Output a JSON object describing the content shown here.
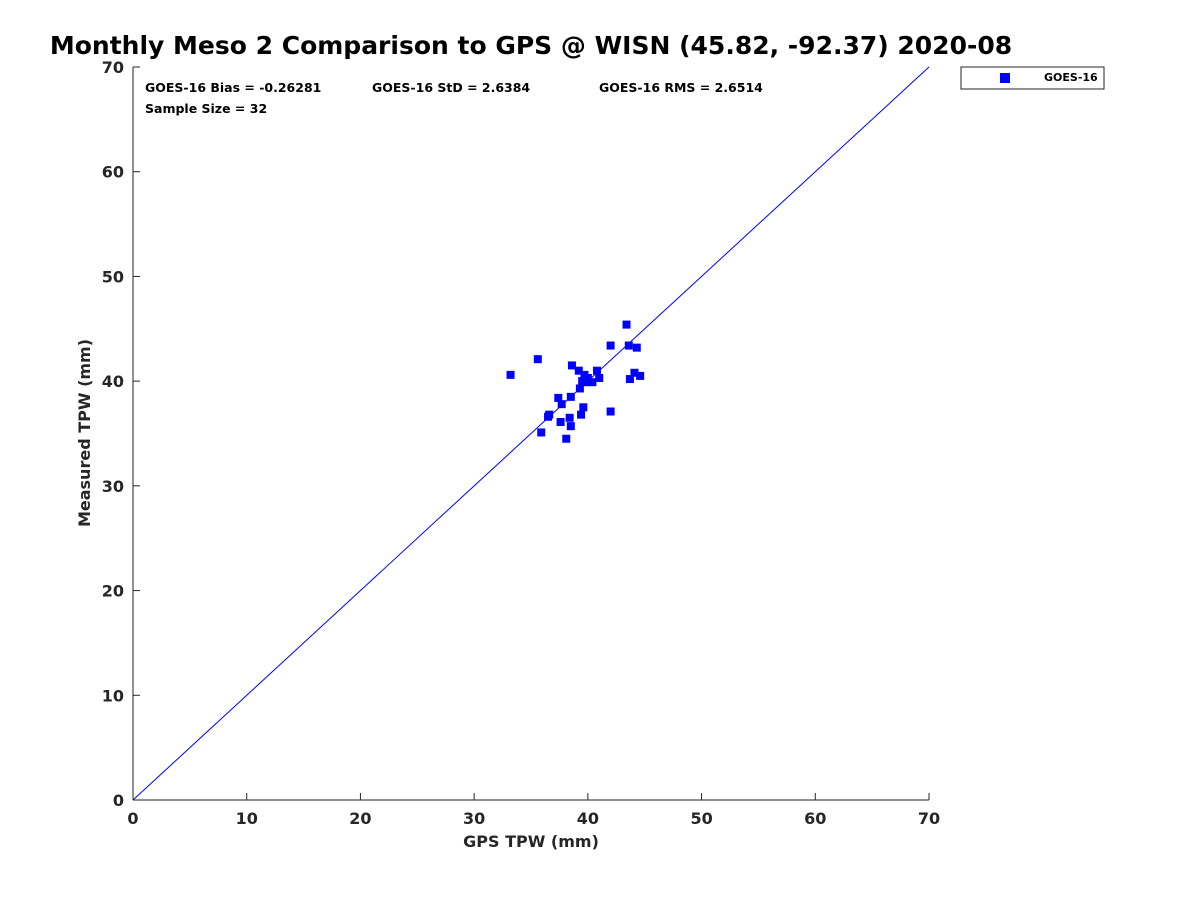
{
  "chart_data": {
    "type": "scatter",
    "title": "Monthly Meso 2 Comparison to GPS @ WISN (45.82, -92.37) 2020-08",
    "xlabel": "GPS TPW (mm)",
    "ylabel": "Measured TPW (mm)",
    "xlim": [
      0,
      70
    ],
    "ylim": [
      0,
      70
    ],
    "xticks": [
      "0",
      "10",
      "20",
      "30",
      "40",
      "50",
      "60",
      "70"
    ],
    "yticks": [
      "0",
      "10",
      "20",
      "30",
      "40",
      "50",
      "60",
      "70"
    ],
    "grid": false,
    "legend_position": "outside-top-right",
    "reference_line": {
      "name": "one-to-one",
      "x": [
        0,
        70
      ],
      "y": [
        0,
        70
      ],
      "color": "#0000ff"
    },
    "series": [
      {
        "name": "GOES-16",
        "color": "#0000ff",
        "marker": "square",
        "x": [
          33.2,
          35.6,
          35.9,
          36.5,
          36.6,
          37.4,
          37.6,
          37.7,
          38.1,
          38.4,
          38.5,
          38.5,
          38.6,
          39.2,
          39.3,
          39.4,
          39.5,
          39.6,
          39.7,
          39.8,
          40.0,
          40.4,
          40.8,
          41.0,
          42.0,
          42.0,
          43.4,
          43.6,
          43.7,
          44.1,
          44.3,
          44.6
        ],
        "y": [
          40.6,
          42.1,
          35.1,
          36.6,
          36.8,
          38.4,
          36.1,
          37.8,
          34.5,
          36.5,
          35.7,
          38.5,
          41.5,
          41.0,
          39.3,
          36.8,
          40.0,
          37.5,
          40.6,
          39.9,
          40.3,
          39.9,
          41.0,
          40.3,
          37.1,
          43.4,
          45.4,
          43.4,
          40.2,
          40.8,
          43.2,
          40.5
        ]
      }
    ],
    "stats": {
      "bias": "GOES-16 Bias = -0.26281",
      "std": "GOES-16 StD = 2.6384",
      "rms": "GOES-16 RMS = 2.6514",
      "sample": "Sample Size = 32"
    }
  }
}
